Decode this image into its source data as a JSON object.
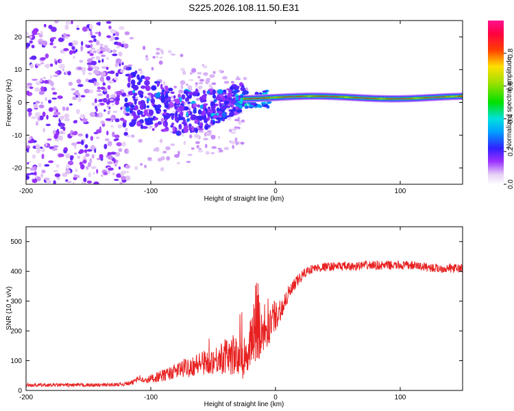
{
  "figure": {
    "title": "S225.2026.108.11.50.E31"
  },
  "chart_data": [
    {
      "type": "heatmap",
      "title": "S225.2026.108.11.50.E31",
      "xlabel": "Height of straight line (km)",
      "ylabel": "Frequency (Hz)",
      "xlim": [
        -200,
        150
      ],
      "ylim": [
        -25,
        25
      ],
      "x_ticks": [
        -200,
        -100,
        0,
        100
      ],
      "x_tick_labels": [
        "-200",
        "-100",
        "0",
        "100"
      ],
      "y_ticks": [
        -20,
        -10,
        0,
        10,
        20
      ],
      "y_tick_labels": [
        "-20",
        "-10",
        "0",
        "10",
        "20"
      ],
      "colorbar": {
        "label": "Normalized spectral amplitude",
        "range": [
          0,
          1
        ],
        "ticks": [
          0.0,
          0.2,
          0.4,
          0.6,
          0.8
        ],
        "tick_labels": [
          "0.0",
          "0.2",
          "0.4",
          "0.6",
          "0.8"
        ],
        "colormap": "rainbow (white-violet-blue-cyan-green-yellow-red-magenta)"
      },
      "regions": [
        {
          "x_range": [
            -200,
            -120
          ],
          "freq_range": [
            -25,
            25
          ],
          "amplitude": "0.0-0.2",
          "description": "scattered noise"
        },
        {
          "x_range": [
            -120,
            -25
          ],
          "freq_range": [
            -15,
            10
          ],
          "amplitude": "0.1-0.4",
          "description": "clustered blobs narrowing toward 0 Hz"
        },
        {
          "x_range": [
            -25,
            150
          ],
          "freq_center": 1.5,
          "bandwidth": 3,
          "amplitude": "0.4-1.0",
          "description": "narrow band near 1-2 Hz"
        }
      ]
    },
    {
      "type": "line",
      "xlabel": "Height of straight line (km)",
      "ylabel": "SNR (10 * v/v)",
      "xlim": [
        -200,
        150
      ],
      "ylim": [
        0,
        550
      ],
      "x_ticks": [
        -200,
        -100,
        0,
        100
      ],
      "x_tick_labels": [
        "-200",
        "-100",
        "0",
        "100"
      ],
      "y_ticks": [
        0,
        100,
        200,
        300,
        400,
        500
      ],
      "y_tick_labels": [
        "0",
        "100",
        "200",
        "300",
        "400",
        "500"
      ],
      "series": [
        {
          "name": "SNR",
          "color": "#e82020",
          "x": [
            -200,
            -180,
            -160,
            -140,
            -125,
            -115,
            -110,
            -105,
            -100,
            -90,
            -80,
            -70,
            -60,
            -50,
            -40,
            -35,
            -30,
            -25,
            -20,
            -17,
            -15,
            -13,
            -10,
            -5,
            0,
            5,
            10,
            15,
            20,
            25,
            30,
            40,
            50,
            60,
            70,
            80,
            90,
            100,
            110,
            120,
            130,
            140,
            150
          ],
          "values": [
            18,
            18,
            18,
            18,
            20,
            25,
            45,
            30,
            40,
            50,
            65,
            80,
            90,
            100,
            115,
            120,
            110,
            90,
            170,
            200,
            250,
            230,
            210,
            220,
            250,
            280,
            320,
            350,
            380,
            400,
            410,
            415,
            418,
            415,
            420,
            420,
            420,
            420,
            420,
            415,
            410,
            410,
            410
          ]
        }
      ],
      "noise_amplitude": [
        6,
        6,
        6,
        6,
        6,
        8,
        12,
        10,
        15,
        20,
        25,
        35,
        40,
        45,
        60,
        70,
        65,
        60,
        80,
        120,
        150,
        140,
        90,
        70,
        50,
        40,
        30,
        25,
        20,
        15,
        15,
        15,
        15,
        15,
        15,
        15,
        15,
        15,
        15,
        15,
        15,
        15,
        15
      ]
    }
  ]
}
